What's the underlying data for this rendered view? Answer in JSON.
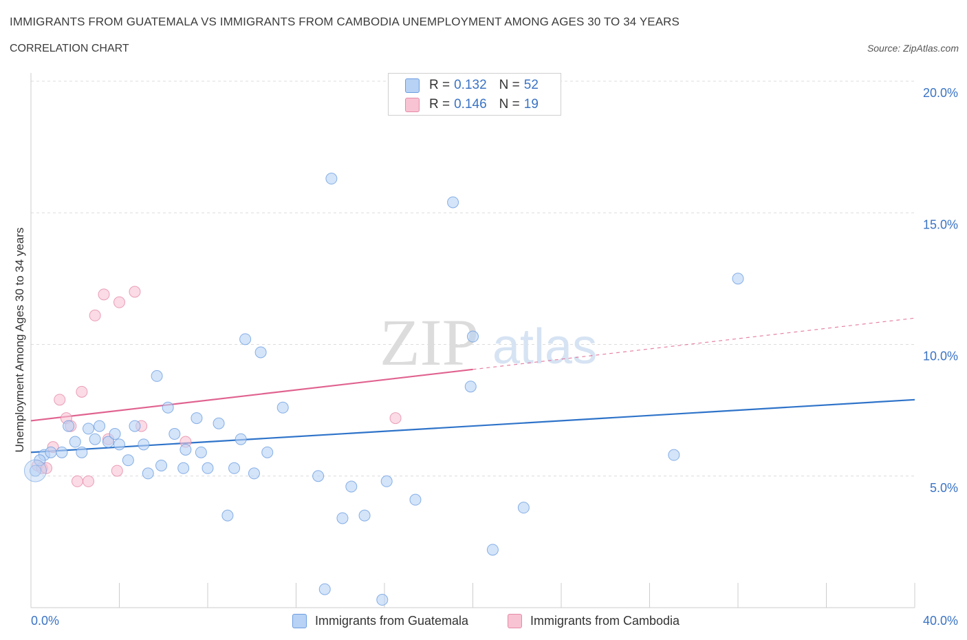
{
  "header": {
    "title": "IMMIGRANTS FROM GUATEMALA VS IMMIGRANTS FROM CAMBODIA UNEMPLOYMENT AMONG AGES 30 TO 34 YEARS",
    "subtitle": "CORRELATION CHART",
    "source": "Source: ZipAtlas.com"
  },
  "legend": {
    "r_label": "R =",
    "n_label": "N =",
    "guatemala": {
      "r": "0.132",
      "n": "52",
      "label": "Immigrants from Guatemala"
    },
    "cambodia": {
      "r": "0.146",
      "n": "19",
      "label": "Immigrants from Cambodia"
    }
  },
  "watermark": {
    "zip": "ZIP",
    "atlas": "atlas"
  },
  "colors": {
    "guatemala_fill": "#b7d2f5",
    "guatemala_stroke": "#6b9de0",
    "guatemala_line": "#2e73c9",
    "cambodia_fill": "#f8c3d3",
    "cambodia_stroke": "#e58aa8",
    "cambodia_line": "#e0628f",
    "axis_text": "#3a73c4",
    "grid": "#dcdcdc"
  },
  "chart_data": {
    "type": "scatter",
    "ylabel": "Unemployment Among Ages 30 to 34 years",
    "xlim": [
      0,
      40
    ],
    "ylim": [
      0,
      20
    ],
    "x_tick_labels": [
      "0.0%",
      "40.0%"
    ],
    "y_ticks": [
      5,
      10,
      15,
      20
    ],
    "y_tick_labels": [
      "5.0%",
      "10.0%",
      "15.0%",
      "20.0%"
    ],
    "grid": true,
    "legend_position": "top-center",
    "series": [
      {
        "name": "Immigrants from Guatemala",
        "trend": {
          "x": [
            0,
            40
          ],
          "y": [
            5.9,
            7.9
          ],
          "dashed_from": null
        },
        "points": [
          [
            0.2,
            5.2
          ],
          [
            0.6,
            5.8
          ],
          [
            0.9,
            5.9
          ],
          [
            1.4,
            5.9
          ],
          [
            1.7,
            6.9
          ],
          [
            2.0,
            6.3
          ],
          [
            2.3,
            5.9
          ],
          [
            2.6,
            6.8
          ],
          [
            2.9,
            6.4
          ],
          [
            3.1,
            6.9
          ],
          [
            3.5,
            6.3
          ],
          [
            3.8,
            6.6
          ],
          [
            4.0,
            6.2
          ],
          [
            4.4,
            5.6
          ],
          [
            4.7,
            6.9
          ],
          [
            5.1,
            6.2
          ],
          [
            5.3,
            5.1
          ],
          [
            5.7,
            8.8
          ],
          [
            5.9,
            5.4
          ],
          [
            6.2,
            7.6
          ],
          [
            6.5,
            6.6
          ],
          [
            6.9,
            5.3
          ],
          [
            7.0,
            6.0
          ],
          [
            7.5,
            7.2
          ],
          [
            7.7,
            5.9
          ],
          [
            8.0,
            5.3
          ],
          [
            8.5,
            7.0
          ],
          [
            8.9,
            3.5
          ],
          [
            9.2,
            5.3
          ],
          [
            9.5,
            6.4
          ],
          [
            9.7,
            10.2
          ],
          [
            10.1,
            5.1
          ],
          [
            10.4,
            9.7
          ],
          [
            10.7,
            5.9
          ],
          [
            11.4,
            7.6
          ],
          [
            13.0,
            5.0
          ],
          [
            13.3,
            0.7
          ],
          [
            13.6,
            16.3
          ],
          [
            14.1,
            3.4
          ],
          [
            14.5,
            4.6
          ],
          [
            15.1,
            3.5
          ],
          [
            15.9,
            0.3
          ],
          [
            16.1,
            4.8
          ],
          [
            17.4,
            4.1
          ],
          [
            19.1,
            15.4
          ],
          [
            19.9,
            8.4
          ],
          [
            20.0,
            10.3
          ],
          [
            20.9,
            2.2
          ],
          [
            22.3,
            3.8
          ],
          [
            29.1,
            5.8
          ],
          [
            32.0,
            12.5
          ],
          [
            0.4,
            5.6
          ]
        ]
      },
      {
        "name": "Immigrants from Cambodia",
        "trend": {
          "x": [
            0,
            40
          ],
          "y": [
            7.1,
            11.0
          ],
          "dashed_from": 20.0
        },
        "points": [
          [
            0.3,
            5.4
          ],
          [
            0.5,
            5.3
          ],
          [
            0.7,
            5.3
          ],
          [
            1.0,
            6.1
          ],
          [
            1.3,
            7.9
          ],
          [
            1.6,
            7.2
          ],
          [
            1.8,
            6.9
          ],
          [
            2.1,
            4.8
          ],
          [
            2.3,
            8.2
          ],
          [
            2.6,
            4.8
          ],
          [
            2.9,
            11.1
          ],
          [
            3.3,
            11.9
          ],
          [
            3.5,
            6.4
          ],
          [
            3.9,
            5.2
          ],
          [
            4.0,
            11.6
          ],
          [
            4.7,
            12.0
          ],
          [
            5.0,
            6.9
          ],
          [
            7.0,
            6.3
          ],
          [
            16.5,
            7.2
          ]
        ]
      }
    ]
  }
}
